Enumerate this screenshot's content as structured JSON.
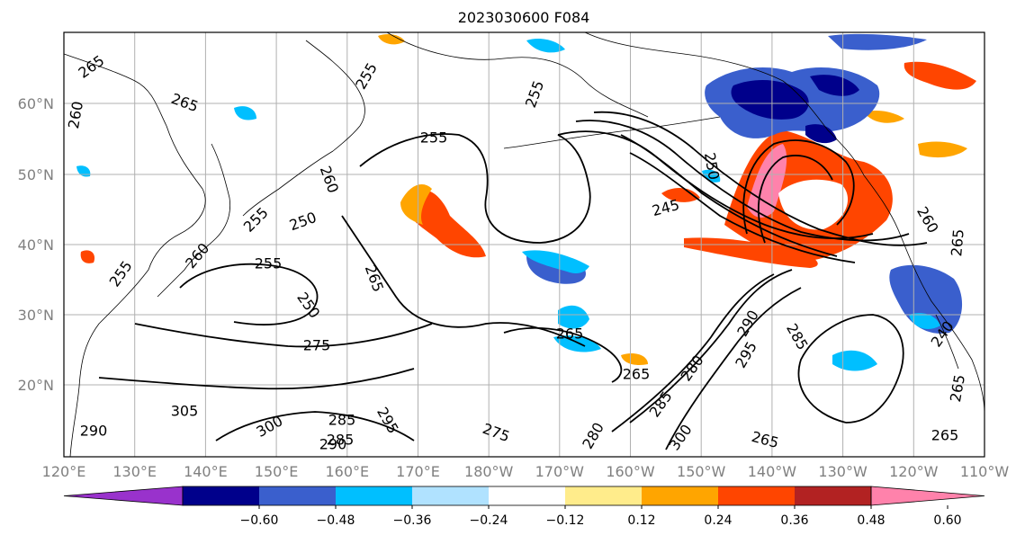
{
  "title": "2023030600 F084",
  "map": {
    "lat_labels": [
      "60°N",
      "50°N",
      "40°N",
      "30°N",
      "20°N"
    ],
    "lon_labels": [
      "120°E",
      "130°E",
      "140°E",
      "150°E",
      "160°E",
      "170°E",
      "180°W",
      "170°W",
      "160°W",
      "150°W",
      "140°W",
      "130°W",
      "120°W",
      "110°W"
    ],
    "contour_labels": [
      "265",
      "265",
      "260",
      "255",
      "255",
      "255",
      "260",
      "250",
      "245",
      "250",
      "260",
      "265",
      "255",
      "250",
      "255",
      "265",
      "275",
      "265",
      "265",
      "285",
      "305",
      "290",
      "300",
      "285",
      "285",
      "295",
      "290",
      "275",
      "280",
      "290",
      "280",
      "285",
      "295",
      "300",
      "265",
      "265",
      "240",
      "255",
      "260",
      "265"
    ],
    "colors": {
      "coast": "#000000",
      "grid": "#b0b0b0",
      "contour": "#000000"
    }
  },
  "colorbar": {
    "tick_labels": [
      "−0.60",
      "−0.48",
      "−0.36",
      "−0.24",
      "−0.12",
      "0.12",
      "0.24",
      "0.36",
      "0.48",
      "0.60"
    ],
    "colors": [
      "#9932cc",
      "#00008b",
      "#3a5fcd",
      "#00bfff",
      "#b0e2ff",
      "#ffffff",
      "#ffec8b",
      "#ffa500",
      "#ff4500",
      "#b22222",
      "#ff82ab"
    ]
  }
}
